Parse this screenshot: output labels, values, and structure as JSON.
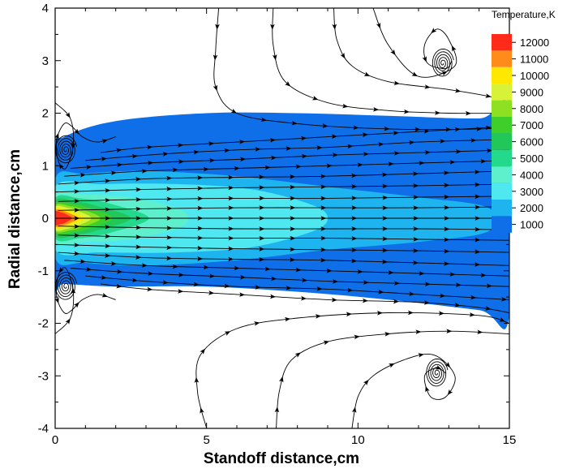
{
  "chart_data": {
    "type": "heatmap",
    "title": "",
    "xlabel": "Standoff distance,cm",
    "ylabel": "Radial distance,cm",
    "xlim": [
      0,
      15
    ],
    "ylim": [
      -4,
      4
    ],
    "x_ticks": [
      0,
      5,
      10,
      15
    ],
    "y_ticks": [
      -4,
      -3,
      -2,
      -1,
      0,
      1,
      2,
      3,
      4
    ],
    "grid": false,
    "legend": {
      "title": "Temperature,K",
      "placement": "top-right",
      "levels": [
        {
          "value": 12000,
          "color": "#ff2a1a"
        },
        {
          "value": 11000,
          "color": "#ff8c1a"
        },
        {
          "value": 10000,
          "color": "#ffe800"
        },
        {
          "value": 9000,
          "color": "#d8f23a"
        },
        {
          "value": 8000,
          "color": "#8ee022"
        },
        {
          "value": 7000,
          "color": "#3ecf2a"
        },
        {
          "value": 6000,
          "color": "#22c75a"
        },
        {
          "value": 5000,
          "color": "#24d98c"
        },
        {
          "value": 4000,
          "color": "#5ef0cc"
        },
        {
          "value": 3000,
          "color": "#4fe8f0"
        },
        {
          "value": 2000,
          "color": "#1eb4ef"
        },
        {
          "value": 1000,
          "color": "#0f6fe8"
        }
      ]
    },
    "temperature_contours": [
      {
        "level": 1000,
        "x": [
          0,
          0.3,
          2,
          5,
          8,
          11,
          14,
          15,
          15,
          14,
          11,
          8,
          5,
          2,
          0.3,
          0
        ],
        "y": [
          1.25,
          1.55,
          1.85,
          2.0,
          2.0,
          1.95,
          1.9,
          2.0,
          -1.85,
          -1.75,
          -1.55,
          -1.4,
          -1.3,
          -1.3,
          -1.25,
          -1.25
        ]
      },
      {
        "level": 2000,
        "x": [
          0,
          1,
          3,
          6,
          9,
          12,
          14.3,
          14.3,
          12,
          9,
          6,
          3,
          1,
          0
        ],
        "y": [
          0.75,
          0.85,
          0.9,
          0.8,
          0.6,
          0.4,
          0.2,
          -0.25,
          -0.45,
          -0.6,
          -0.8,
          -0.9,
          -0.85,
          -0.75
        ]
      },
      {
        "level": 3000,
        "x": [
          0,
          1.5,
          4,
          6.5,
          8.5,
          9,
          8.5,
          6.5,
          4,
          1.5,
          0
        ],
        "y": [
          0.6,
          0.65,
          0.65,
          0.55,
          0.25,
          0,
          -0.25,
          -0.55,
          -0.65,
          -0.65,
          -0.6
        ]
      },
      {
        "level": 4000,
        "x": [
          0,
          1,
          2.5,
          4,
          4.4,
          4,
          2.5,
          1,
          0
        ],
        "y": [
          0.45,
          0.45,
          0.4,
          0.2,
          0,
          -0.2,
          -0.4,
          -0.45,
          -0.45
        ]
      },
      {
        "level": 5000,
        "x": [
          0,
          0.8,
          1.8,
          3.1,
          1.8,
          0.8,
          0
        ],
        "y": [
          0.38,
          0.38,
          0.28,
          0,
          -0.28,
          -0.38,
          -0.38
        ]
      },
      {
        "level": 6000,
        "x": [
          0,
          0.7,
          1.4,
          2.5,
          1.4,
          0.7,
          0
        ],
        "y": [
          0.33,
          0.32,
          0.23,
          0,
          -0.23,
          -0.32,
          -0.33
        ]
      },
      {
        "level": 7000,
        "x": [
          0,
          0.6,
          1.1,
          1.9,
          1.1,
          0.6,
          0
        ],
        "y": [
          0.28,
          0.27,
          0.2,
          0,
          -0.2,
          -0.27,
          -0.28
        ]
      },
      {
        "level": 8000,
        "x": [
          0,
          0.5,
          0.9,
          1.5,
          0.9,
          0.5,
          0
        ],
        "y": [
          0.24,
          0.23,
          0.17,
          0,
          -0.17,
          -0.23,
          -0.24
        ]
      },
      {
        "level": 9000,
        "x": [
          0,
          0.4,
          0.75,
          1.2,
          0.75,
          0.4,
          0
        ],
        "y": [
          0.21,
          0.2,
          0.14,
          0,
          -0.14,
          -0.2,
          -0.21
        ]
      },
      {
        "level": 10000,
        "x": [
          0,
          0.3,
          0.55,
          0.95,
          0.55,
          0.3,
          0
        ],
        "y": [
          0.18,
          0.17,
          0.12,
          0,
          -0.12,
          -0.17,
          -0.18
        ]
      },
      {
        "level": 11000,
        "x": [
          0,
          0.25,
          0.45,
          0.75,
          0.45,
          0.25,
          0
        ],
        "y": [
          0.15,
          0.14,
          0.1,
          0,
          -0.1,
          -0.14,
          -0.15
        ]
      },
      {
        "level": 12000,
        "x": [
          0,
          0.2,
          0.35,
          0.55,
          0.35,
          0.2,
          0
        ],
        "y": [
          0.12,
          0.11,
          0.08,
          0,
          -0.08,
          -0.11,
          -0.12
        ]
      }
    ],
    "streamlines": [
      {
        "x": [
          0.1,
          3,
          6,
          9,
          12,
          15
        ],
        "y": [
          0,
          0,
          0,
          0,
          0,
          0
        ]
      },
      {
        "x": [
          0.1,
          3,
          6,
          9,
          12,
          15
        ],
        "y": [
          0.15,
          0.18,
          0.2,
          0.2,
          0.2,
          0.22
        ]
      },
      {
        "x": [
          0.1,
          3,
          6,
          9,
          12,
          15
        ],
        "y": [
          0.32,
          0.36,
          0.38,
          0.38,
          0.4,
          0.42
        ]
      },
      {
        "x": [
          0.1,
          3,
          6,
          9,
          12,
          15
        ],
        "y": [
          0.5,
          0.55,
          0.58,
          0.6,
          0.62,
          0.65
        ]
      },
      {
        "x": [
          0.1,
          3,
          6,
          9,
          12,
          15
        ],
        "y": [
          0.65,
          0.75,
          0.78,
          0.8,
          0.85,
          0.9
        ]
      },
      {
        "x": [
          0.3,
          3,
          6,
          9,
          12,
          15
        ],
        "y": [
          0.8,
          0.9,
          0.95,
          1.0,
          1.05,
          1.1
        ]
      },
      {
        "x": [
          0.5,
          3,
          6,
          9,
          12,
          15
        ],
        "y": [
          0.95,
          1.05,
          1.12,
          1.2,
          1.25,
          1.3
        ]
      },
      {
        "x": [
          1.0,
          3,
          6,
          9,
          12,
          15
        ],
        "y": [
          1.1,
          1.2,
          1.3,
          1.35,
          1.45,
          1.5
        ]
      },
      {
        "x": [
          1.5,
          3,
          6,
          9,
          12,
          15
        ],
        "y": [
          1.25,
          1.35,
          1.45,
          1.55,
          1.65,
          1.75
        ]
      },
      {
        "x": [
          0.1,
          3,
          6,
          9,
          12,
          15
        ],
        "y": [
          -0.15,
          -0.18,
          -0.2,
          -0.2,
          -0.2,
          -0.22
        ]
      },
      {
        "x": [
          0.1,
          3,
          6,
          9,
          12,
          15
        ],
        "y": [
          -0.32,
          -0.36,
          -0.38,
          -0.38,
          -0.4,
          -0.42
        ]
      },
      {
        "x": [
          0.1,
          3,
          6,
          9,
          12,
          15
        ],
        "y": [
          -0.5,
          -0.55,
          -0.58,
          -0.6,
          -0.62,
          -0.65
        ]
      },
      {
        "x": [
          0.1,
          3,
          6,
          9,
          12,
          15
        ],
        "y": [
          -0.65,
          -0.75,
          -0.78,
          -0.8,
          -0.85,
          -0.9
        ]
      },
      {
        "x": [
          0.3,
          3,
          6,
          9,
          12,
          15
        ],
        "y": [
          -0.8,
          -0.9,
          -0.95,
          -1.0,
          -1.05,
          -1.1
        ]
      },
      {
        "x": [
          0.5,
          3,
          6,
          9,
          12,
          15
        ],
        "y": [
          -0.95,
          -1.05,
          -1.12,
          -1.2,
          -1.25,
          -1.3
        ]
      },
      {
        "x": [
          1.0,
          3,
          6,
          9,
          12,
          15
        ],
        "y": [
          -1.1,
          -1.2,
          -1.3,
          -1.35,
          -1.45,
          -1.55
        ]
      },
      {
        "x": [
          1.5,
          3,
          6,
          9,
          12,
          14,
          15
        ],
        "y": [
          -1.25,
          -1.35,
          -1.45,
          -1.55,
          -1.6,
          -1.7,
          -1.8
        ]
      },
      {
        "x": [
          5.4,
          5.3,
          5.3,
          6.0,
          8.0,
          11.0,
          14.0,
          15.0
        ],
        "y": [
          4.0,
          3.2,
          2.5,
          2.0,
          1.8,
          1.7,
          1.7,
          1.75
        ]
      },
      {
        "x": [
          7.2,
          7.2,
          7.6,
          9.0,
          11.0,
          13.0,
          15.0
        ],
        "y": [
          4.0,
          3.3,
          2.6,
          2.2,
          2.05,
          2.0,
          2.0
        ]
      },
      {
        "x": [
          9.2,
          9.3,
          9.8,
          11.0,
          13.0,
          14.5,
          15.0
        ],
        "y": [
          4.0,
          3.4,
          2.9,
          2.6,
          2.45,
          2.3,
          2.2
        ]
      },
      {
        "x": [
          10.5,
          11.0,
          12.0,
          13.2,
          13.0,
          12.6,
          12.2,
          12.3,
          12.9,
          13.1
        ],
        "y": [
          4.0,
          3.3,
          2.7,
          2.9,
          3.4,
          3.6,
          3.3,
          2.95,
          2.85,
          3.0
        ]
      },
      {
        "x": [
          5.0,
          4.7,
          4.8,
          6.0,
          8.0,
          11.0,
          14.0,
          15.0
        ],
        "y": [
          -4.0,
          -3.3,
          -2.6,
          -2.1,
          -1.9,
          -1.8,
          -1.85,
          -2.0
        ]
      },
      {
        "x": [
          7.3,
          7.4,
          7.8,
          9.0,
          11.0,
          13.0,
          15.0
        ],
        "y": [
          -4.0,
          -3.3,
          -2.7,
          -2.35,
          -2.2,
          -2.15,
          -2.2
        ]
      },
      {
        "x": [
          9.8,
          10.0,
          10.5,
          11.5,
          12.5,
          13.2,
          12.9,
          12.4,
          12.2,
          12.6,
          12.9
        ],
        "y": [
          -4.0,
          -3.4,
          -3.0,
          -2.7,
          -2.6,
          -3.0,
          -3.4,
          -3.4,
          -3.0,
          -2.85,
          -2.95
        ]
      },
      {
        "x": [
          0.0,
          0.5,
          0.6,
          0.35,
          0.1,
          0.05,
          0.3,
          0.55,
          0.9,
          1.4,
          2.0
        ],
        "y": [
          2.2,
          1.9,
          1.4,
          0.95,
          1.1,
          1.5,
          1.8,
          1.75,
          1.55,
          1.45,
          1.55
        ]
      },
      {
        "x": [
          0.0,
          0.5,
          0.6,
          0.35,
          0.1,
          0.05,
          0.3,
          0.55,
          0.9,
          1.4,
          2.0
        ],
        "y": [
          -2.2,
          -1.9,
          -1.4,
          -0.95,
          -1.1,
          -1.5,
          -1.8,
          -1.75,
          -1.55,
          -1.45,
          -1.55
        ]
      }
    ],
    "vortex_centers": [
      {
        "x": 0.35,
        "y": 1.3
      },
      {
        "x": 0.35,
        "y": -1.3
      },
      {
        "x": 12.8,
        "y": 2.95
      },
      {
        "x": 12.6,
        "y": -2.95
      }
    ]
  }
}
